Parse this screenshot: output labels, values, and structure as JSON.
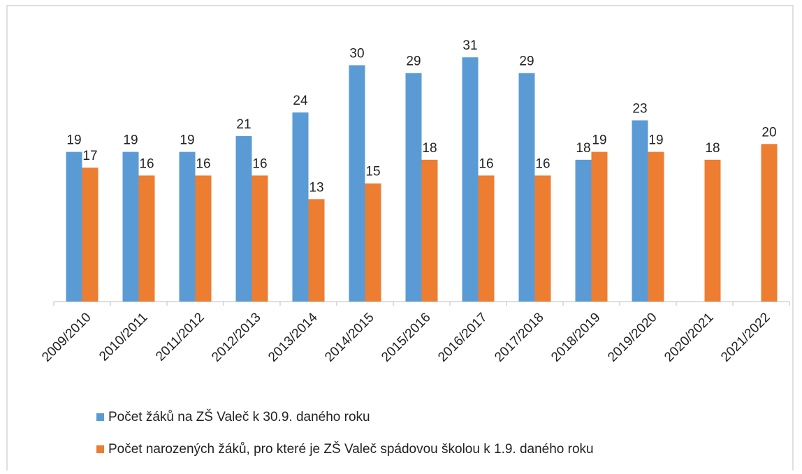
{
  "chart_data": {
    "type": "bar",
    "categories": [
      "2009/2010",
      "2010/2011",
      "2011/2012",
      "2012/2013",
      "2013/2014",
      "2014/2015",
      "2015/2016",
      "2016/2017",
      "2017/2018",
      "2018/2019",
      "2019/2020",
      "2020/2021",
      "2021/2022"
    ],
    "series": [
      {
        "name": "Počet žáků na ZŠ Valeč k 30.9. daného roku",
        "color": "#5b9bd5",
        "values": [
          19,
          19,
          19,
          21,
          24,
          30,
          29,
          31,
          29,
          18,
          23,
          null,
          null
        ]
      },
      {
        "name": "Počet narozených žáků, pro které je ZŠ Valeč spádovou školou k 1.9. daného roku",
        "color": "#ed7d31",
        "values": [
          17,
          16,
          16,
          16,
          13,
          15,
          18,
          16,
          16,
          19,
          19,
          18,
          20
        ]
      }
    ],
    "ylim": [
      0,
      35
    ],
    "legend": "bottom"
  }
}
